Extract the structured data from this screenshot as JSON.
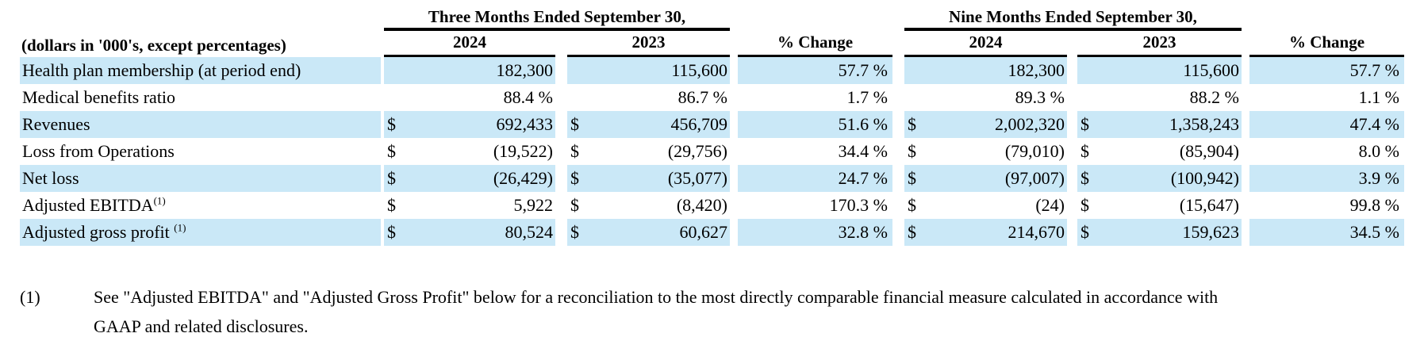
{
  "table": {
    "unit_note": "(dollars in '000's, except percentages)",
    "highlight_color": "#CAE8F7",
    "groups": [
      {
        "label": "Three Months Ended September 30,"
      },
      {
        "label": "Nine Months Ended September 30,"
      }
    ],
    "col_headers": [
      "2024",
      "2023",
      "% Change",
      "2024",
      "2023",
      "% Change"
    ],
    "rows": [
      {
        "label": "Health plan membership (at period end)",
        "gap": "",
        "sup": "",
        "cells": [
          {
            "cur": "",
            "val": "182,300"
          },
          {
            "cur": "",
            "val": "115,600"
          },
          {
            "cur": "",
            "val": "57.7 %"
          },
          {
            "cur": "",
            "val": "182,300"
          },
          {
            "cur": "",
            "val": "115,600"
          },
          {
            "cur": "",
            "val": "57.7 %"
          }
        ]
      },
      {
        "label": "Medical benefits ratio",
        "gap": "",
        "sup": "",
        "cells": [
          {
            "cur": "",
            "val": "88.4 %"
          },
          {
            "cur": "",
            "val": "86.7 %"
          },
          {
            "cur": "",
            "val": "1.7 %"
          },
          {
            "cur": "",
            "val": "89.3 %"
          },
          {
            "cur": "",
            "val": "88.2 %"
          },
          {
            "cur": "",
            "val": "1.1 %"
          }
        ]
      },
      {
        "label": "Revenues",
        "gap": "",
        "sup": "",
        "cells": [
          {
            "cur": "$",
            "val": "692,433"
          },
          {
            "cur": "$",
            "val": "456,709"
          },
          {
            "cur": "",
            "val": "51.6 %"
          },
          {
            "cur": "$",
            "val": "2,002,320"
          },
          {
            "cur": "$",
            "val": "1,358,243"
          },
          {
            "cur": "",
            "val": "47.4 %"
          }
        ]
      },
      {
        "label": "Loss from Operations",
        "gap": "",
        "sup": "",
        "cells": [
          {
            "cur": "$",
            "val": "(19,522)"
          },
          {
            "cur": "$",
            "val": "(29,756)"
          },
          {
            "cur": "",
            "val": "34.4 %"
          },
          {
            "cur": "$",
            "val": "(79,010)"
          },
          {
            "cur": "$",
            "val": "(85,904)"
          },
          {
            "cur": "",
            "val": "8.0 %"
          }
        ]
      },
      {
        "label": "Net loss",
        "gap": "",
        "sup": "",
        "cells": [
          {
            "cur": "$",
            "val": "(26,429)"
          },
          {
            "cur": "$",
            "val": "(35,077)"
          },
          {
            "cur": "",
            "val": "24.7 %"
          },
          {
            "cur": "$",
            "val": "(97,007)"
          },
          {
            "cur": "$",
            "val": "(100,942)"
          },
          {
            "cur": "",
            "val": "3.9 %"
          }
        ]
      },
      {
        "label": "Adjusted EBITDA",
        "gap": "",
        "sup": "(1)",
        "cells": [
          {
            "cur": "$",
            "val": "5,922"
          },
          {
            "cur": "$",
            "val": "(8,420)"
          },
          {
            "cur": "",
            "val": "170.3 %"
          },
          {
            "cur": "$",
            "val": "(24)"
          },
          {
            "cur": "$",
            "val": "(15,647)"
          },
          {
            "cur": "",
            "val": "99.8 %"
          }
        ]
      },
      {
        "label": "Adjusted gross profit",
        "gap": " ",
        "sup": "(1)",
        "cells": [
          {
            "cur": "$",
            "val": "80,524"
          },
          {
            "cur": "$",
            "val": "60,627"
          },
          {
            "cur": "",
            "val": "32.8 %"
          },
          {
            "cur": "$",
            "val": "214,670"
          },
          {
            "cur": "$",
            "val": "159,623"
          },
          {
            "cur": "",
            "val": "34.5 %"
          }
        ]
      }
    ]
  },
  "footnote": {
    "marker": "(1)",
    "text": "See \"Adjusted EBITDA\" and \"Adjusted Gross Profit\" below for a reconciliation to the most directly comparable financial measure calculated in accordance with GAAP and related disclosures."
  }
}
